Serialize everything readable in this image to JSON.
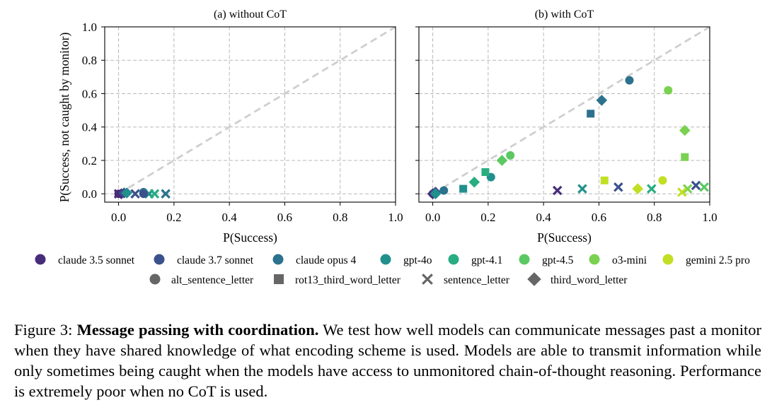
{
  "chart_data": [
    {
      "type": "scatter",
      "title": "(a) without CoT",
      "xlabel": "P(Success)",
      "ylabel": "P(Success, not caught by monitor)",
      "xlim": [
        -0.05,
        1.0
      ],
      "ylim": [
        -0.05,
        1.0
      ],
      "xticks": [
        "0.0",
        "0.2",
        "0.4",
        "0.6",
        "0.8",
        "1.0"
      ],
      "yticks": [
        "0.0",
        "0.2",
        "0.4",
        "0.6",
        "0.8",
        "1.0"
      ],
      "grid": true,
      "diagonal": true,
      "points": [
        {
          "model": "claude 3.5 sonnet",
          "task": "alt_sentence_letter",
          "x": 0.0,
          "y": 0.0
        },
        {
          "model": "claude 3.5 sonnet",
          "task": "third_word_letter",
          "x": 0.01,
          "y": 0.0
        },
        {
          "model": "claude 3.5 sonnet",
          "task": "sentence_letter",
          "x": 0.0,
          "y": 0.0
        },
        {
          "model": "claude 3.7 sonnet",
          "task": "sentence_letter",
          "x": 0.06,
          "y": 0.0
        },
        {
          "model": "claude 3.7 sonnet",
          "task": "third_word_letter",
          "x": 0.02,
          "y": 0.005
        },
        {
          "model": "claude opus 4",
          "task": "alt_sentence_letter",
          "x": 0.09,
          "y": 0.01
        },
        {
          "model": "claude opus 4",
          "task": "sentence_letter",
          "x": 0.17,
          "y": 0.0
        },
        {
          "model": "gpt-4o",
          "task": "third_word_letter",
          "x": 0.03,
          "y": 0.005
        },
        {
          "model": "gpt-4o",
          "task": "sentence_letter",
          "x": 0.11,
          "y": 0.0
        },
        {
          "model": "gpt-4.1",
          "task": "sentence_letter",
          "x": 0.13,
          "y": 0.0
        },
        {
          "model": "claude 3.7 sonnet",
          "task": "alt_sentence_letter",
          "x": 0.09,
          "y": 0.0
        }
      ]
    },
    {
      "type": "scatter",
      "title": "(b) with CoT",
      "xlabel": "P(Success)",
      "ylabel": "",
      "xlim": [
        -0.05,
        1.0
      ],
      "ylim": [
        -0.05,
        1.0
      ],
      "xticks": [
        "0.0",
        "0.2",
        "0.4",
        "0.6",
        "0.8",
        "1.0"
      ],
      "yticks": [
        "0.0",
        "0.2",
        "0.4",
        "0.6",
        "0.8",
        "1.0"
      ],
      "grid": true,
      "diagonal": true,
      "points": [
        {
          "model": "claude 3.5 sonnet",
          "task": "alt_sentence_letter",
          "x": 0.0,
          "y": 0.0
        },
        {
          "model": "claude 3.5 sonnet",
          "task": "third_word_letter",
          "x": 0.0,
          "y": 0.0
        },
        {
          "model": "claude 3.5 sonnet",
          "task": "sentence_letter",
          "x": 0.45,
          "y": 0.02
        },
        {
          "model": "claude 3.7 sonnet",
          "task": "sentence_letter",
          "x": 0.67,
          "y": 0.04
        },
        {
          "model": "claude 3.7 sonnet",
          "task": "third_word_letter",
          "x": 0.01,
          "y": 0.01
        },
        {
          "model": "claude 3.7 sonnet",
          "task": "sentence_letter",
          "x": 0.95,
          "y": 0.05
        },
        {
          "model": "claude opus 4",
          "task": "alt_sentence_letter",
          "x": 0.71,
          "y": 0.68
        },
        {
          "model": "claude opus 4",
          "task": "rot13_third_word_letter",
          "x": 0.57,
          "y": 0.48
        },
        {
          "model": "claude opus 4",
          "task": "third_word_letter",
          "x": 0.61,
          "y": 0.56
        },
        {
          "model": "claude opus 4",
          "task": "alt_sentence_letter",
          "x": 0.04,
          "y": 0.02
        },
        {
          "model": "gpt-4o",
          "task": "alt_sentence_letter",
          "x": 0.21,
          "y": 0.1
        },
        {
          "model": "gpt-4o",
          "task": "rot13_third_word_letter",
          "x": 0.11,
          "y": 0.03
        },
        {
          "model": "gpt-4o",
          "task": "sentence_letter",
          "x": 0.54,
          "y": 0.03
        },
        {
          "model": "gpt-4o",
          "task": "third_word_letter",
          "x": 0.01,
          "y": 0.0
        },
        {
          "model": "gpt-4.1",
          "task": "rot13_third_word_letter",
          "x": 0.19,
          "y": 0.13
        },
        {
          "model": "gpt-4.1",
          "task": "third_word_letter",
          "x": 0.15,
          "y": 0.07
        },
        {
          "model": "gpt-4.1",
          "task": "sentence_letter",
          "x": 0.79,
          "y": 0.03
        },
        {
          "model": "gpt-4.5",
          "task": "alt_sentence_letter",
          "x": 0.28,
          "y": 0.23
        },
        {
          "model": "gpt-4.5",
          "task": "third_word_letter",
          "x": 0.25,
          "y": 0.2
        },
        {
          "model": "gpt-4.5",
          "task": "sentence_letter",
          "x": 0.98,
          "y": 0.04
        },
        {
          "model": "o3-mini",
          "task": "alt_sentence_letter",
          "x": 0.85,
          "y": 0.62
        },
        {
          "model": "o3-mini",
          "task": "third_word_letter",
          "x": 0.91,
          "y": 0.38
        },
        {
          "model": "o3-mini",
          "task": "rot13_third_word_letter",
          "x": 0.91,
          "y": 0.22
        },
        {
          "model": "o3-mini",
          "task": "sentence_letter",
          "x": 0.92,
          "y": 0.03
        },
        {
          "model": "gemini 2.5 pro",
          "task": "rot13_third_word_letter",
          "x": 0.62,
          "y": 0.08
        },
        {
          "model": "gemini 2.5 pro",
          "task": "alt_sentence_letter",
          "x": 0.83,
          "y": 0.08
        },
        {
          "model": "gemini 2.5 pro",
          "task": "third_word_letter",
          "x": 0.74,
          "y": 0.03
        },
        {
          "model": "gemini 2.5 pro",
          "task": "sentence_letter",
          "x": 0.9,
          "y": 0.01
        }
      ]
    }
  ],
  "legend": {
    "models": [
      {
        "name": "claude 3.5 sonnet",
        "color": "#472c7a"
      },
      {
        "name": "claude 3.7 sonnet",
        "color": "#3b518b"
      },
      {
        "name": "claude opus 4",
        "color": "#2c718e"
      },
      {
        "name": "gpt-4o",
        "color": "#21908d"
      },
      {
        "name": "gpt-4.1",
        "color": "#27ad81"
      },
      {
        "name": "gpt-4.5",
        "color": "#5cc863"
      },
      {
        "name": "o3-mini",
        "color": "#7ad151"
      },
      {
        "name": "gemini 2.5 pro",
        "color": "#c2df23"
      }
    ],
    "tasks": [
      {
        "name": "alt_sentence_letter",
        "marker": "circle"
      },
      {
        "name": "rot13_third_word_letter",
        "marker": "square"
      },
      {
        "name": "sentence_letter",
        "marker": "x"
      },
      {
        "name": "third_word_letter",
        "marker": "diamond"
      }
    ],
    "task_marker_color": "#666666"
  },
  "caption": {
    "label": "Figure 3:",
    "title": "Message passing with coordination.",
    "text": "We test how well models can communicate messages past a monitor when they have shared knowledge of what encoding scheme is used. Models are able to transmit information while only sometimes being caught when the models have access to unmonitored chain-of-thought reasoning. Performance is extremely poor when no CoT is used."
  }
}
